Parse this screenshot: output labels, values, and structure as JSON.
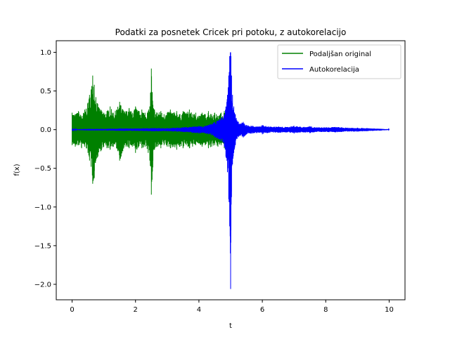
{
  "chart_data": {
    "type": "line",
    "title": "Podatki za posnetek Cricek pri potoku, z autokorelacijo",
    "xlabel": "t",
    "ylabel": "f(x)",
    "xlim": [
      -0.5,
      10.5
    ],
    "ylim": [
      -2.2,
      1.15
    ],
    "xticks": [
      0,
      2,
      4,
      6,
      8,
      10
    ],
    "xtick_labels": [
      "0",
      "2",
      "4",
      "6",
      "8",
      "10"
    ],
    "yticks": [
      -2.0,
      -1.5,
      -1.0,
      -0.5,
      0.0,
      0.5,
      1.0
    ],
    "ytick_labels": [
      "−2.0",
      "−1.5",
      "−1.0",
      "−0.5",
      "0.0",
      "0.5",
      "1.0"
    ],
    "grid": false,
    "legend_position": "top-right",
    "series": [
      {
        "name": "Podaljšan original",
        "color": "#008000",
        "kind": "envelope",
        "x": [
          0.0,
          0.1,
          0.2,
          0.3,
          0.4,
          0.5,
          0.55,
          0.6,
          0.65,
          0.7,
          0.75,
          0.8,
          0.9,
          1.0,
          1.1,
          1.2,
          1.3,
          1.4,
          1.5,
          1.6,
          1.7,
          1.8,
          1.9,
          2.0,
          2.1,
          2.2,
          2.3,
          2.4,
          2.45,
          2.5,
          2.55,
          2.6,
          2.7,
          2.8,
          2.9,
          3.0,
          3.1,
          3.2,
          3.3,
          3.4,
          3.5,
          3.6,
          3.7,
          3.8,
          3.9,
          4.0,
          4.1,
          4.2,
          4.3,
          4.4,
          4.5,
          4.6,
          4.7,
          4.8,
          4.9,
          4.98
        ],
        "upper": [
          0.22,
          0.2,
          0.24,
          0.18,
          0.26,
          0.35,
          0.45,
          0.52,
          0.7,
          0.58,
          0.42,
          0.34,
          0.26,
          0.22,
          0.24,
          0.3,
          0.22,
          0.26,
          0.36,
          0.26,
          0.24,
          0.28,
          0.22,
          0.3,
          0.24,
          0.26,
          0.22,
          0.24,
          0.3,
          0.79,
          0.32,
          0.26,
          0.22,
          0.24,
          0.2,
          0.22,
          0.26,
          0.22,
          0.24,
          0.2,
          0.24,
          0.22,
          0.26,
          0.2,
          0.22,
          0.18,
          0.22,
          0.2,
          0.24,
          0.2,
          0.22,
          0.18,
          0.22,
          0.24,
          0.2,
          0.18
        ],
        "lower": [
          -0.2,
          -0.22,
          -0.2,
          -0.24,
          -0.22,
          -0.3,
          -0.4,
          -0.48,
          -0.7,
          -0.62,
          -0.4,
          -0.36,
          -0.28,
          -0.22,
          -0.24,
          -0.26,
          -0.22,
          -0.24,
          -0.4,
          -0.28,
          -0.22,
          -0.24,
          -0.22,
          -0.3,
          -0.22,
          -0.24,
          -0.22,
          -0.3,
          -0.4,
          -0.84,
          -0.4,
          -0.26,
          -0.22,
          -0.24,
          -0.2,
          -0.22,
          -0.24,
          -0.22,
          -0.26,
          -0.22,
          -0.24,
          -0.2,
          -0.24,
          -0.22,
          -0.2,
          -0.18,
          -0.22,
          -0.2,
          -0.24,
          -0.22,
          -0.2,
          -0.22,
          -0.2,
          -0.24,
          -0.22,
          -0.2
        ]
      },
      {
        "name": "Autokorelacija",
        "color": "#0000ff",
        "kind": "envelope",
        "x": [
          0.0,
          0.5,
          1.0,
          1.5,
          2.0,
          2.5,
          3.0,
          3.5,
          3.8,
          4.0,
          4.1,
          4.3,
          4.5,
          4.7,
          4.8,
          4.85,
          4.9,
          4.94,
          4.97,
          4.99,
          5.0,
          5.01,
          5.03,
          5.06,
          5.1,
          5.15,
          5.2,
          5.3,
          5.4,
          5.5,
          5.7,
          5.9,
          6.0,
          6.2,
          6.5,
          6.8,
          7.0,
          7.3,
          7.5,
          7.7,
          8.0,
          8.3,
          8.5,
          8.7,
          9.0,
          9.3,
          9.5,
          9.7,
          10.0
        ],
        "upper": [
          0.005,
          0.01,
          0.01,
          0.015,
          0.015,
          0.02,
          0.02,
          0.03,
          0.04,
          0.05,
          0.04,
          0.06,
          0.1,
          0.15,
          0.2,
          0.3,
          0.45,
          0.7,
          0.95,
          1.0,
          1.0,
          0.95,
          0.7,
          0.45,
          0.3,
          0.2,
          0.12,
          0.08,
          0.1,
          0.06,
          0.05,
          0.04,
          0.06,
          0.04,
          0.04,
          0.035,
          0.05,
          0.035,
          0.045,
          0.03,
          0.03,
          0.035,
          0.03,
          0.025,
          0.025,
          0.02,
          0.015,
          0.012,
          0.005
        ],
        "lower": [
          -0.005,
          -0.01,
          -0.01,
          -0.015,
          -0.015,
          -0.02,
          -0.02,
          -0.03,
          -0.04,
          -0.05,
          -0.04,
          -0.06,
          -0.1,
          -0.15,
          -0.22,
          -0.35,
          -0.55,
          -0.9,
          -1.25,
          -1.6,
          -2.06,
          -1.3,
          -0.8,
          -0.45,
          -0.3,
          -0.2,
          -0.12,
          -0.08,
          -0.1,
          -0.06,
          -0.05,
          -0.04,
          -0.06,
          -0.04,
          -0.04,
          -0.035,
          -0.05,
          -0.035,
          -0.045,
          -0.03,
          -0.03,
          -0.035,
          -0.03,
          -0.025,
          -0.025,
          -0.02,
          -0.015,
          -0.012,
          -0.005
        ]
      }
    ]
  }
}
